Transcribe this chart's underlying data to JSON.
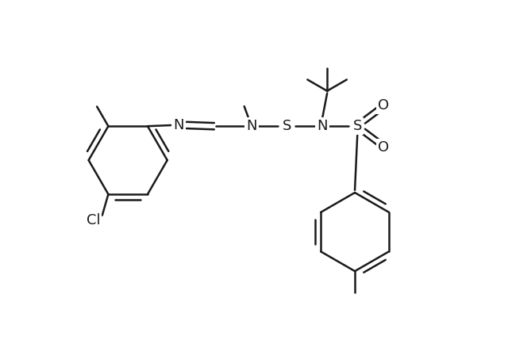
{
  "background_color": "#ffffff",
  "line_color": "#1a1a1a",
  "line_width": 1.8,
  "font_size": 13,
  "figsize": [
    6.4,
    4.29
  ],
  "dpi": 100,
  "xlim": [
    0,
    10
  ],
  "ylim": [
    0,
    6.71
  ]
}
